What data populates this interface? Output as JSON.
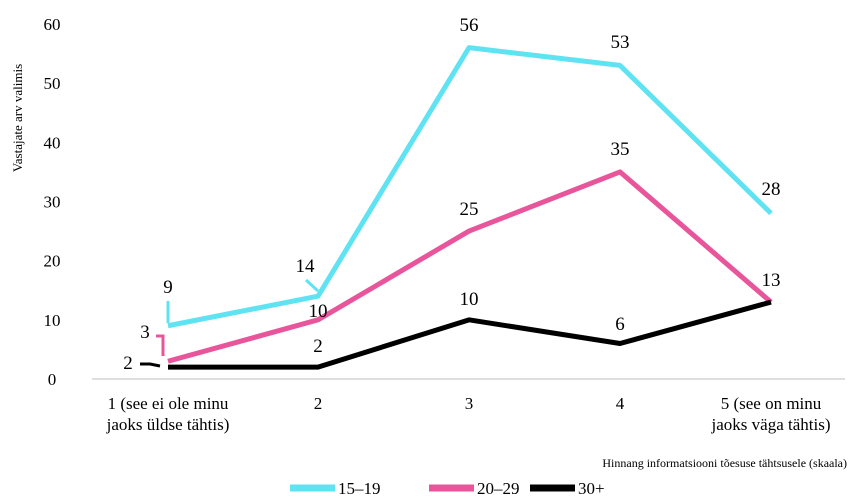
{
  "chart_data": {
    "type": "line",
    "title": "",
    "xlabel": "Hinnang informatsiooni tõesuse tähtsusele (skaala)",
    "ylabel": "Vastajate arv valimis",
    "ylim": [
      0,
      60
    ],
    "yticks": [
      "0",
      "10",
      "20",
      "30",
      "40",
      "50",
      "60"
    ],
    "grid": false,
    "legend_position": "bottom",
    "categories": [
      [
        "1 (see ei ole minu",
        "jaoks üldse tähtis)"
      ],
      [
        "2"
      ],
      [
        "3"
      ],
      [
        "4"
      ],
      [
        "5 (see on minu",
        "jaoks väga tähtis)"
      ]
    ],
    "series": [
      {
        "name": "15–19",
        "color": "#5fe3f2",
        "values": [
          9,
          14,
          56,
          53,
          28
        ]
      },
      {
        "name": "20–29",
        "color": "#e8559b",
        "values": [
          3,
          10,
          25,
          35,
          13
        ]
      },
      {
        "name": "30+",
        "color": "#000000",
        "values": [
          2,
          2,
          10,
          6,
          13
        ]
      }
    ]
  }
}
